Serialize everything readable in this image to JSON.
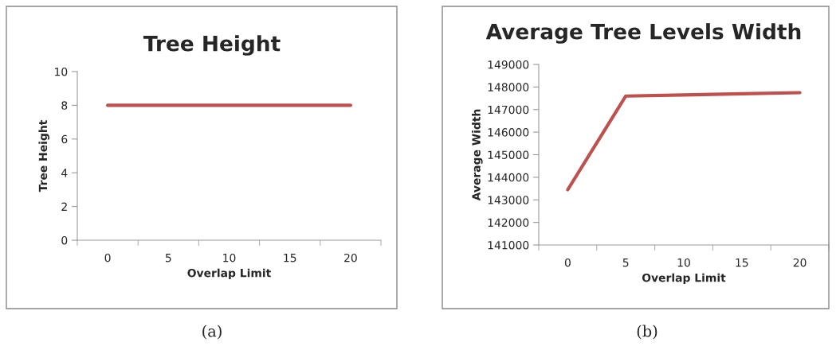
{
  "chart_data": [
    {
      "type": "line",
      "title": "Tree Height",
      "xlabel": "Overlap Limit",
      "ylabel": "Tree Height",
      "categories": [
        "0",
        "5",
        "10",
        "15",
        "20"
      ],
      "series": [
        {
          "color": "#c0504d",
          "values": [
            8,
            8,
            8,
            8,
            8
          ]
        }
      ],
      "ylim": [
        0,
        10
      ],
      "yticks": [
        0,
        2,
        4,
        6,
        8,
        10
      ],
      "grid": false,
      "legend": false,
      "annotations": [
        "(a)"
      ]
    },
    {
      "type": "line",
      "title": "Average Tree Levels Width",
      "xlabel": "Overlap Limit",
      "ylabel": "Average Width",
      "categories": [
        "0",
        "5",
        "10",
        "15",
        "20"
      ],
      "series": [
        {
          "color": "#c0504d",
          "values": [
            143450,
            147600,
            147650,
            147700,
            147750
          ]
        }
      ],
      "ylim": [
        141000,
        149000
      ],
      "yticks": [
        141000,
        142000,
        143000,
        144000,
        145000,
        146000,
        147000,
        148000,
        149000
      ],
      "grid": false,
      "legend": false,
      "annotations": [
        "(b)"
      ]
    }
  ]
}
